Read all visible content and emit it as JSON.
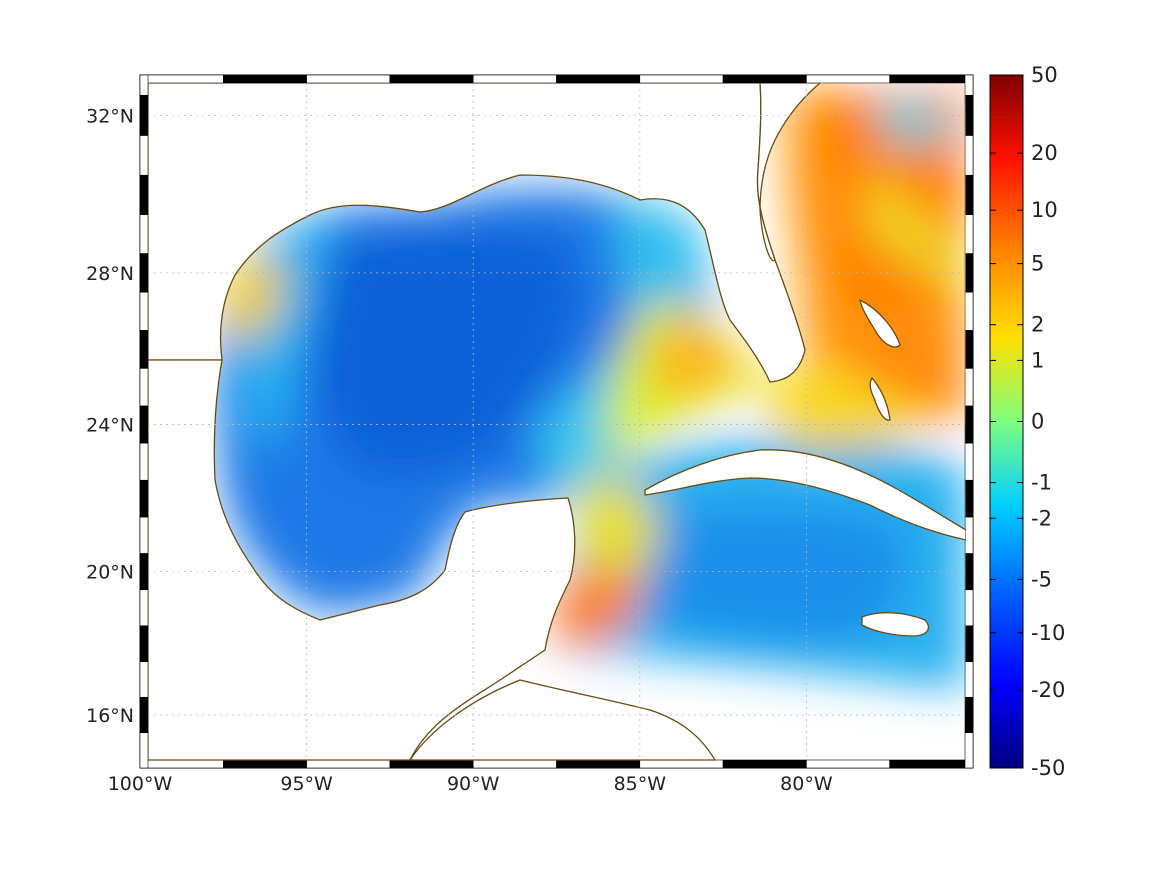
{
  "map": {
    "lon_range": [
      -100,
      -75
    ],
    "lat_range": [
      14.5,
      33
    ],
    "projection": "mercator-like",
    "grid": true,
    "x_ticks": [
      {
        "value": -100,
        "label": "100°W"
      },
      {
        "value": -95,
        "label": "95°W"
      },
      {
        "value": -90,
        "label": "90°W"
      },
      {
        "value": -85,
        "label": "85°W"
      },
      {
        "value": -80,
        "label": "80°W"
      }
    ],
    "y_ticks": [
      {
        "value": 32,
        "label": "32°N"
      },
      {
        "value": 28,
        "label": "28°N"
      },
      {
        "value": 24,
        "label": "24°N"
      },
      {
        "value": 20,
        "label": "20°N"
      },
      {
        "value": 16,
        "label": "16°N"
      }
    ],
    "coastline_color": "#6b4a12",
    "land_color": "#ffffff"
  },
  "colorbar": {
    "scale": "symmetric-log",
    "colormap": "jet",
    "tick_labels": [
      "50",
      "20",
      "10",
      "5",
      "2",
      "1",
      "0",
      "-1",
      "-2",
      "-5",
      "-10",
      "-20",
      "-50"
    ]
  }
}
